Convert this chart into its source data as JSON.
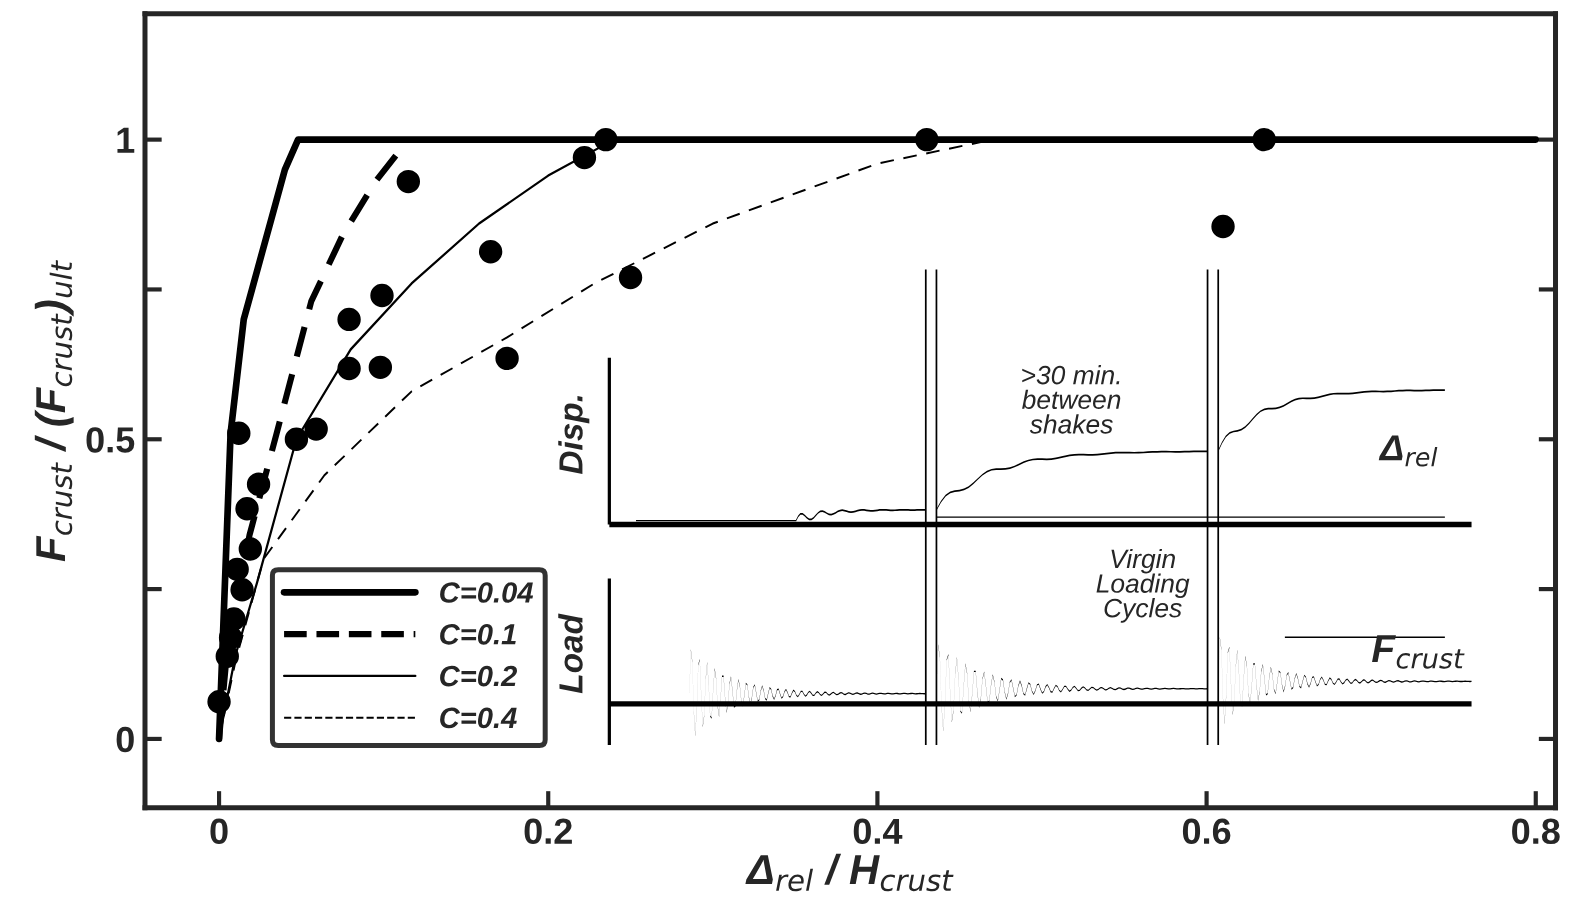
{
  "chart_data": {
    "type": "line",
    "xlabel": "Δ$_{rel}$ / H$_{crust}$",
    "ylabel": "F$_{crust}$ / (F$_{crust}$)$_{ult}$",
    "xlim": [
      -0.045,
      0.812
    ],
    "ylim": [
      -0.115,
      1.21
    ],
    "xticks": [
      0,
      0.2,
      0.4,
      0.6,
      0.8
    ],
    "yticks": [
      0,
      {
        "value": 0.25,
        "label": null
      },
      0.5,
      {
        "value": 0.75,
        "label": null
      },
      1
    ],
    "grid": false,
    "legend": "bottom left",
    "series": [
      {
        "name": "C=0.04",
        "color": "#000000",
        "line_style": "solid",
        "x": [
          0,
          0.007,
          0.015,
          0.031,
          0.04,
          0.048,
          0.8
        ],
        "values": [
          0,
          0.51,
          0.7,
          0.86,
          0.95,
          1,
          1
        ]
      },
      {
        "name": "C=0.1",
        "color": "#000000",
        "line_style": "dashed",
        "x": [
          0,
          0.005,
          0.0185,
          0.035,
          0.056,
          0.075,
          0.095,
          0.115
        ],
        "values": [
          0,
          0.15,
          0.34,
          0.51,
          0.73,
          0.84,
          0.93,
          1
        ]
      },
      {
        "name": "C=0.2",
        "color": "#000000",
        "line_style": "solid",
        "x": [
          0,
          0.01,
          0.023,
          0.047,
          0.08,
          0.117,
          0.158,
          0.2,
          0.24
        ],
        "values": [
          0,
          0.14,
          0.26,
          0.5,
          0.65,
          0.76,
          0.86,
          0.94,
          1
        ]
      },
      {
        "name": "C=0.4",
        "color": "#000000",
        "line_style": "dashed",
        "x": [
          0,
          0.01,
          0.027,
          0.064,
          0.117,
          0.175,
          0.228,
          0.3,
          0.4,
          0.47
        ],
        "values": [
          0,
          0.13,
          0.3,
          0.44,
          0.58,
          0.67,
          0.76,
          0.86,
          0.96,
          1
        ]
      },
      {
        "type": "scatter",
        "color": "#000000",
        "marker": "circle",
        "x": [
          0.0,
          0.005,
          0.007,
          0.009,
          0.014,
          0.011,
          0.019,
          0.017,
          0.024,
          0.012,
          0.047,
          0.059,
          0.079,
          0.098,
          0.079,
          0.099,
          0.165,
          0.175,
          0.115,
          0.222,
          0.235,
          0.43,
          0.635,
          0.61,
          0.25
        ],
        "values": [
          0.062,
          0.138,
          0.169,
          0.2,
          0.249,
          0.283,
          0.317,
          0.384,
          0.425,
          0.51,
          0.5,
          0.517,
          0.618,
          0.62,
          0.7,
          0.74,
          0.813,
          0.635,
          0.93,
          0.97,
          1.0,
          1.0,
          1.0,
          0.855,
          0.77
        ]
      }
    ],
    "annotations": [
      "Disp.",
      "Load",
      ">30 min.\nbetween\nshakes",
      "Virgin\nLoading\nCycles",
      "Δ$_{rel}$",
      "F$_{crust}$"
    ]
  }
}
